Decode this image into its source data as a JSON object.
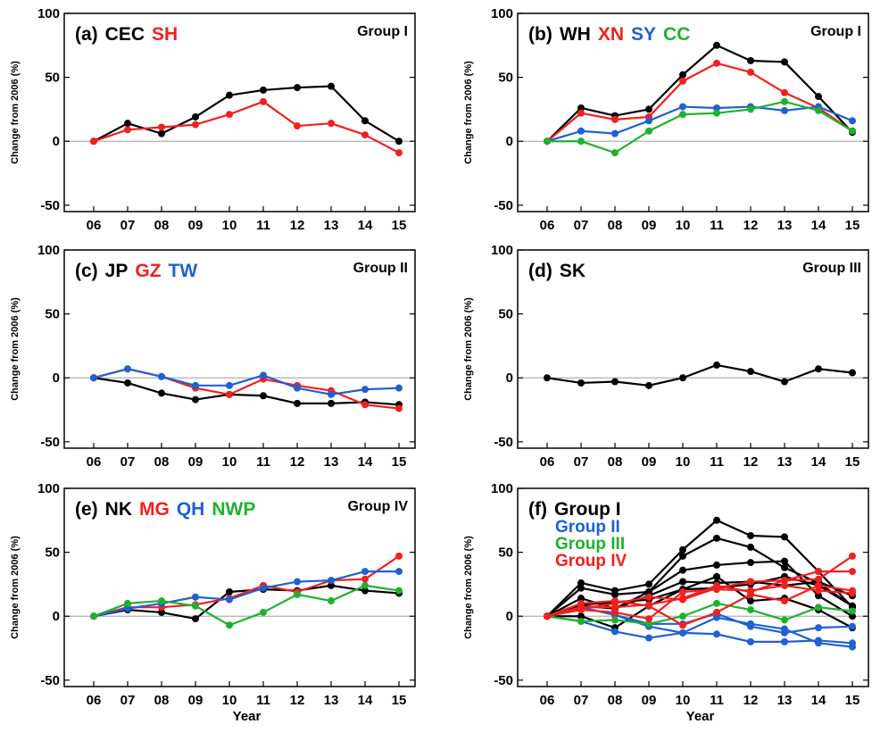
{
  "colors": {
    "black": "#000000",
    "red": "#f02020",
    "blue": "#2060d0",
    "green": "#20b030",
    "zero_line": "#b0b0b0"
  },
  "chart_data": [
    {
      "type": "line",
      "panel_label": "(a)",
      "group_label": "Group I",
      "ylabel": "Change from 2006 (%)",
      "xlabel": "",
      "categories": [
        "06",
        "07",
        "08",
        "09",
        "10",
        "11",
        "12",
        "13",
        "14",
        "15"
      ],
      "ylim": [
        -55,
        100
      ],
      "yticks": [
        -50,
        0,
        50,
        100
      ],
      "series": [
        {
          "name": "CEC",
          "color": "black",
          "values": [
            0,
            14,
            6,
            19,
            36,
            40,
            42,
            43,
            16,
            0
          ]
        },
        {
          "name": "SH",
          "color": "red",
          "values": [
            0,
            9,
            11,
            13,
            21,
            31,
            12,
            14,
            5,
            -9
          ]
        }
      ]
    },
    {
      "type": "line",
      "panel_label": "(b)",
      "group_label": "Group I",
      "ylabel": "Change from 2006 (%)",
      "xlabel": "",
      "categories": [
        "06",
        "07",
        "08",
        "09",
        "10",
        "11",
        "12",
        "13",
        "14",
        "15"
      ],
      "ylim": [
        -55,
        100
      ],
      "yticks": [
        -50,
        0,
        50,
        100
      ],
      "series": [
        {
          "name": "WH",
          "color": "black",
          "values": [
            0,
            26,
            20,
            25,
            52,
            75,
            63,
            62,
            35,
            7
          ]
        },
        {
          "name": "XN",
          "color": "red",
          "values": [
            0,
            22,
            17,
            19,
            47,
            61,
            54,
            38,
            26,
            8
          ]
        },
        {
          "name": "SY",
          "color": "blue",
          "values": [
            0,
            8,
            6,
            16,
            27,
            26,
            27,
            24,
            27,
            16
          ]
        },
        {
          "name": "CC",
          "color": "green",
          "values": [
            0,
            0,
            -9,
            8,
            21,
            22,
            25,
            31,
            24,
            8
          ]
        }
      ]
    },
    {
      "type": "line",
      "panel_label": "(c)",
      "group_label": "Group II",
      "ylabel": "Change from 2006 (%)",
      "xlabel": "",
      "categories": [
        "06",
        "07",
        "08",
        "09",
        "10",
        "11",
        "12",
        "13",
        "14",
        "15"
      ],
      "ylim": [
        -55,
        100
      ],
      "yticks": [
        -50,
        0,
        50,
        100
      ],
      "series": [
        {
          "name": "JP",
          "color": "black",
          "values": [
            0,
            -4,
            -12,
            -17,
            -13,
            -14,
            -20,
            -20,
            -19,
            -21
          ]
        },
        {
          "name": "GZ",
          "color": "red",
          "values": [
            0,
            7,
            1,
            -8,
            -13,
            -1,
            -6,
            -10,
            -21,
            -24
          ]
        },
        {
          "name": "TW",
          "color": "blue",
          "values": [
            0,
            7,
            1,
            -6,
            -6,
            2,
            -8,
            -13,
            -9,
            -8
          ]
        }
      ]
    },
    {
      "type": "line",
      "panel_label": "(d)",
      "group_label": "Group III",
      "ylabel": "Change from 2006 (%)",
      "xlabel": "",
      "categories": [
        "06",
        "07",
        "08",
        "09",
        "10",
        "11",
        "12",
        "13",
        "14",
        "15"
      ],
      "ylim": [
        -55,
        100
      ],
      "yticks": [
        -50,
        0,
        50,
        100
      ],
      "series": [
        {
          "name": "SK",
          "color": "black",
          "values": [
            0,
            -4,
            -3,
            -6,
            0,
            10,
            5,
            -3,
            7,
            4
          ]
        }
      ]
    },
    {
      "type": "line",
      "panel_label": "(e)",
      "group_label": "Group IV",
      "ylabel": "Change from 2006 (%)",
      "xlabel": "Year",
      "categories": [
        "06",
        "07",
        "08",
        "09",
        "10",
        "11",
        "12",
        "13",
        "14",
        "15"
      ],
      "ylim": [
        -55,
        100
      ],
      "yticks": [
        -50,
        0,
        50,
        100
      ],
      "series": [
        {
          "name": "NK",
          "color": "black",
          "values": [
            0,
            5,
            3,
            -2,
            19,
            21,
            20,
            24,
            20,
            18
          ]
        },
        {
          "name": "MG",
          "color": "red",
          "values": [
            0,
            7,
            7,
            9,
            14,
            24,
            19,
            28,
            29,
            47
          ]
        },
        {
          "name": "QH",
          "color": "blue",
          "values": [
            0,
            6,
            10,
            15,
            13,
            22,
            27,
            28,
            35,
            35
          ]
        },
        {
          "name": "NWP",
          "color": "green",
          "values": [
            0,
            10,
            12,
            8,
            -7,
            3,
            17,
            12,
            24,
            20
          ]
        }
      ]
    },
    {
      "type": "line",
      "panel_label": "(f)",
      "group_label": "",
      "ylabel": "Change from 2006 (%)",
      "xlabel": "Year",
      "categories": [
        "06",
        "07",
        "08",
        "09",
        "10",
        "11",
        "12",
        "13",
        "14",
        "15"
      ],
      "ylim": [
        -55,
        100
      ],
      "yticks": [
        -50,
        0,
        50,
        100
      ],
      "legend": [
        {
          "name": "Group I",
          "color": "black"
        },
        {
          "name": "Group II",
          "color": "blue"
        },
        {
          "name": "Group III",
          "color": "green"
        },
        {
          "name": "Group IV",
          "color": "red"
        }
      ],
      "series": [
        {
          "color": "black",
          "values": [
            0,
            26,
            20,
            25,
            52,
            75,
            63,
            62,
            35,
            7
          ]
        },
        {
          "color": "black",
          "values": [
            0,
            22,
            17,
            19,
            47,
            61,
            54,
            38,
            26,
            8
          ]
        },
        {
          "color": "black",
          "values": [
            0,
            14,
            6,
            19,
            36,
            40,
            42,
            43,
            16,
            0
          ]
        },
        {
          "color": "black",
          "values": [
            0,
            9,
            11,
            13,
            21,
            31,
            12,
            14,
            5,
            -9
          ]
        },
        {
          "color": "black",
          "values": [
            0,
            8,
            6,
            16,
            27,
            26,
            27,
            24,
            27,
            16
          ]
        },
        {
          "color": "black",
          "values": [
            0,
            0,
            -9,
            8,
            21,
            22,
            25,
            31,
            24,
            8
          ]
        },
        {
          "color": "blue",
          "values": [
            0,
            -4,
            -12,
            -17,
            -13,
            -14,
            -20,
            -20,
            -19,
            -21
          ]
        },
        {
          "color": "blue",
          "values": [
            0,
            7,
            1,
            -8,
            -13,
            -1,
            -6,
            -10,
            -21,
            -24
          ]
        },
        {
          "color": "blue",
          "values": [
            0,
            7,
            1,
            -6,
            -6,
            2,
            -8,
            -13,
            -9,
            -8
          ]
        },
        {
          "color": "green",
          "values": [
            0,
            -4,
            -3,
            -6,
            0,
            10,
            5,
            -3,
            7,
            4
          ]
        },
        {
          "color": "red",
          "values": [
            0,
            5,
            3,
            -2,
            19,
            21,
            20,
            24,
            20,
            18
          ]
        },
        {
          "color": "red",
          "values": [
            0,
            7,
            7,
            9,
            14,
            24,
            19,
            28,
            29,
            47
          ]
        },
        {
          "color": "red",
          "values": [
            0,
            6,
            10,
            15,
            13,
            22,
            27,
            28,
            35,
            35
          ]
        },
        {
          "color": "red",
          "values": [
            0,
            10,
            12,
            8,
            -7,
            3,
            17,
            12,
            24,
            20
          ]
        }
      ]
    }
  ]
}
